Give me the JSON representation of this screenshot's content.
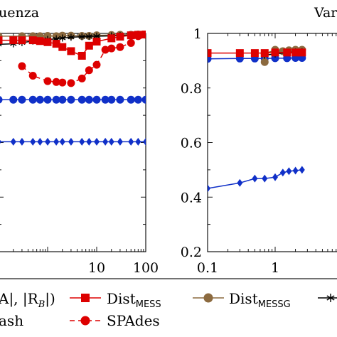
{
  "chart_data": [
    {
      "type": "line",
      "title": "uenza",
      "xscale": "log",
      "xlim": [
        0.1,
        100
      ],
      "ylim": [
        0.2,
        1
      ],
      "xticks": [
        {
          "value": 10,
          "label": "10"
        },
        {
          "value": 100,
          "label": "100"
        }
      ],
      "series": [
        {
          "id": "dist_mess",
          "color": "#dd0000",
          "marker": "square",
          "dash": "none",
          "x": [
            0.1,
            0.2,
            0.3,
            0.5,
            0.7,
            1,
            1.5,
            2,
            3,
            5,
            7,
            10,
            20,
            30,
            50,
            70,
            100
          ],
          "y": [
            0.975,
            0.975,
            0.975,
            0.975,
            0.972,
            0.968,
            0.962,
            0.95,
            0.935,
            0.918,
            0.955,
            0.97,
            0.982,
            0.988,
            0.993,
            0.995,
            0.996
          ]
        },
        {
          "id": "dist_messg",
          "color": "#8c6a3f",
          "marker": "circle",
          "dash": "none",
          "x": [
            0.1,
            0.3,
            0.5,
            0.7,
            1,
            1.5,
            2,
            3,
            5,
            7,
            10,
            20,
            30,
            50,
            70,
            100
          ],
          "y": [
            0.99,
            0.99,
            0.99,
            0.99,
            0.991,
            0.99,
            0.992,
            0.992,
            0.991,
            0.991,
            0.993,
            0.994,
            0.995,
            0.995,
            0.996,
            0.996
          ]
        },
        {
          "id": "minhash",
          "color": "#000000",
          "marker": "star",
          "dash": "none",
          "x": [
            0.1,
            0.2,
            0.3,
            0.5,
            1,
            1.5,
            2,
            3,
            5,
            7,
            10,
            20,
            30,
            50,
            100
          ],
          "y": [
            0.96,
            0.962,
            0.966,
            0.972,
            0.978,
            0.98,
            0.983,
            0.986,
            0.988,
            0.989,
            0.99,
            0.991,
            0.992,
            0.993,
            0.994
          ]
        },
        {
          "id": "spades",
          "color": "#dd0000",
          "marker": "circle",
          "dash": "dashed",
          "x": [
            0.3,
            0.5,
            1,
            1.5,
            2,
            3,
            5,
            7,
            10,
            15,
            20,
            30,
            50,
            70,
            100
          ],
          "y": [
            0.88,
            0.845,
            0.825,
            0.822,
            0.82,
            0.818,
            0.835,
            0.865,
            0.885,
            0.94,
            0.945,
            0.95,
            0.965,
            0.99,
            0.995
          ]
        },
        {
          "id": "blue_circle",
          "color": "#1030c8",
          "marker": "circle",
          "dash": "none",
          "x": [
            0.1,
            0.2,
            0.3,
            0.5,
            0.7,
            1,
            1.5,
            2,
            3,
            5,
            7,
            10,
            15,
            20,
            30,
            50,
            70,
            100
          ],
          "y": [
            0.757,
            0.757,
            0.757,
            0.757,
            0.757,
            0.757,
            0.757,
            0.757,
            0.757,
            0.757,
            0.757,
            0.757,
            0.757,
            0.757,
            0.757,
            0.757,
            0.757,
            0.757
          ]
        },
        {
          "id": "blue_diamond",
          "color": "#1030c8",
          "marker": "diamond",
          "dash": "none",
          "x": [
            0.1,
            0.2,
            0.3,
            0.5,
            0.7,
            1,
            1.5,
            2,
            3,
            5,
            7,
            10,
            15,
            20,
            30,
            50,
            70,
            100
          ],
          "y": [
            0.603,
            0.603,
            0.603,
            0.603,
            0.603,
            0.603,
            0.603,
            0.603,
            0.603,
            0.603,
            0.603,
            0.603,
            0.603,
            0.603,
            0.603,
            0.603,
            0.603,
            0.603
          ]
        }
      ]
    },
    {
      "type": "line",
      "title": "Var",
      "xscale": "log",
      "xlim": [
        0.1,
        10
      ],
      "ylim": [
        0.2,
        1
      ],
      "xticks": [
        {
          "value": 0.1,
          "label": "0.1"
        },
        {
          "value": 1,
          "label": "1"
        }
      ],
      "yticks": [
        {
          "value": 0.2,
          "label": "0.2"
        },
        {
          "value": 0.4,
          "label": "0.4"
        },
        {
          "value": 0.6,
          "label": "0.6"
        },
        {
          "value": 0.8,
          "label": "0.8"
        },
        {
          "value": 1,
          "label": "1"
        }
      ],
      "series": [
        {
          "id": "dist_mess",
          "color": "#dd0000",
          "marker": "square",
          "dash": "none",
          "x": [
            0.1,
            0.3,
            0.5,
            0.7,
            1,
            1.5,
            2,
            2.5
          ],
          "y": [
            0.928,
            0.928,
            0.928,
            0.928,
            0.93,
            0.93,
            0.93,
            0.93
          ]
        },
        {
          "id": "dist_messg",
          "color": "#8c6a3f",
          "marker": "circle",
          "dash": "none",
          "x": [
            0.7,
            0.7,
            1,
            1.3,
            1.6,
            2,
            2.5
          ],
          "y": [
            0.895,
            0.925,
            0.94,
            0.935,
            0.938,
            0.94,
            0.94
          ]
        },
        {
          "id": "minhash",
          "color": "#000000",
          "marker": "star",
          "dash": "none",
          "x": [
            0.7,
            1,
            1.5,
            2,
            2.5
          ],
          "y": [
            0.92,
            0.925,
            0.93,
            0.932,
            0.933
          ]
        },
        {
          "id": "blue_circle",
          "color": "#1030c8",
          "marker": "circle",
          "dash": "none",
          "x": [
            0.1,
            0.3,
            0.5,
            0.7,
            1,
            1.5,
            2,
            2.5
          ],
          "y": [
            0.907,
            0.908,
            0.908,
            0.908,
            0.909,
            0.909,
            0.91,
            0.91
          ]
        },
        {
          "id": "blue_diamond",
          "color": "#1030c8",
          "marker": "diamond",
          "dash": "none",
          "x": [
            0.1,
            0.3,
            0.5,
            0.7,
            1,
            1.3,
            1.6,
            2,
            2.5
          ],
          "y": [
            0.432,
            0.452,
            0.468,
            0.468,
            0.473,
            0.49,
            0.495,
            0.497,
            0.5
          ]
        }
      ]
    }
  ],
  "legend": {
    "entries": [
      {
        "id": "rarb",
        "label_a": "A|, |R",
        "label_sub": "B",
        "label_b": "|)",
        "color": "#1030c8",
        "marker": "none"
      },
      {
        "id": "dist_mess",
        "label": "Dist",
        "sub": "MESS",
        "color": "#dd0000",
        "marker": "square"
      },
      {
        "id": "dist_messg",
        "label": "Dist",
        "sub": "MESSG",
        "color": "#8c6a3f",
        "marker": "circle"
      },
      {
        "id": "minhash",
        "label": "ash",
        "color": "#000000",
        "marker": "star"
      },
      {
        "id": "spades",
        "label": "SPAdes",
        "color": "#dd0000",
        "marker": "circle"
      }
    ]
  }
}
